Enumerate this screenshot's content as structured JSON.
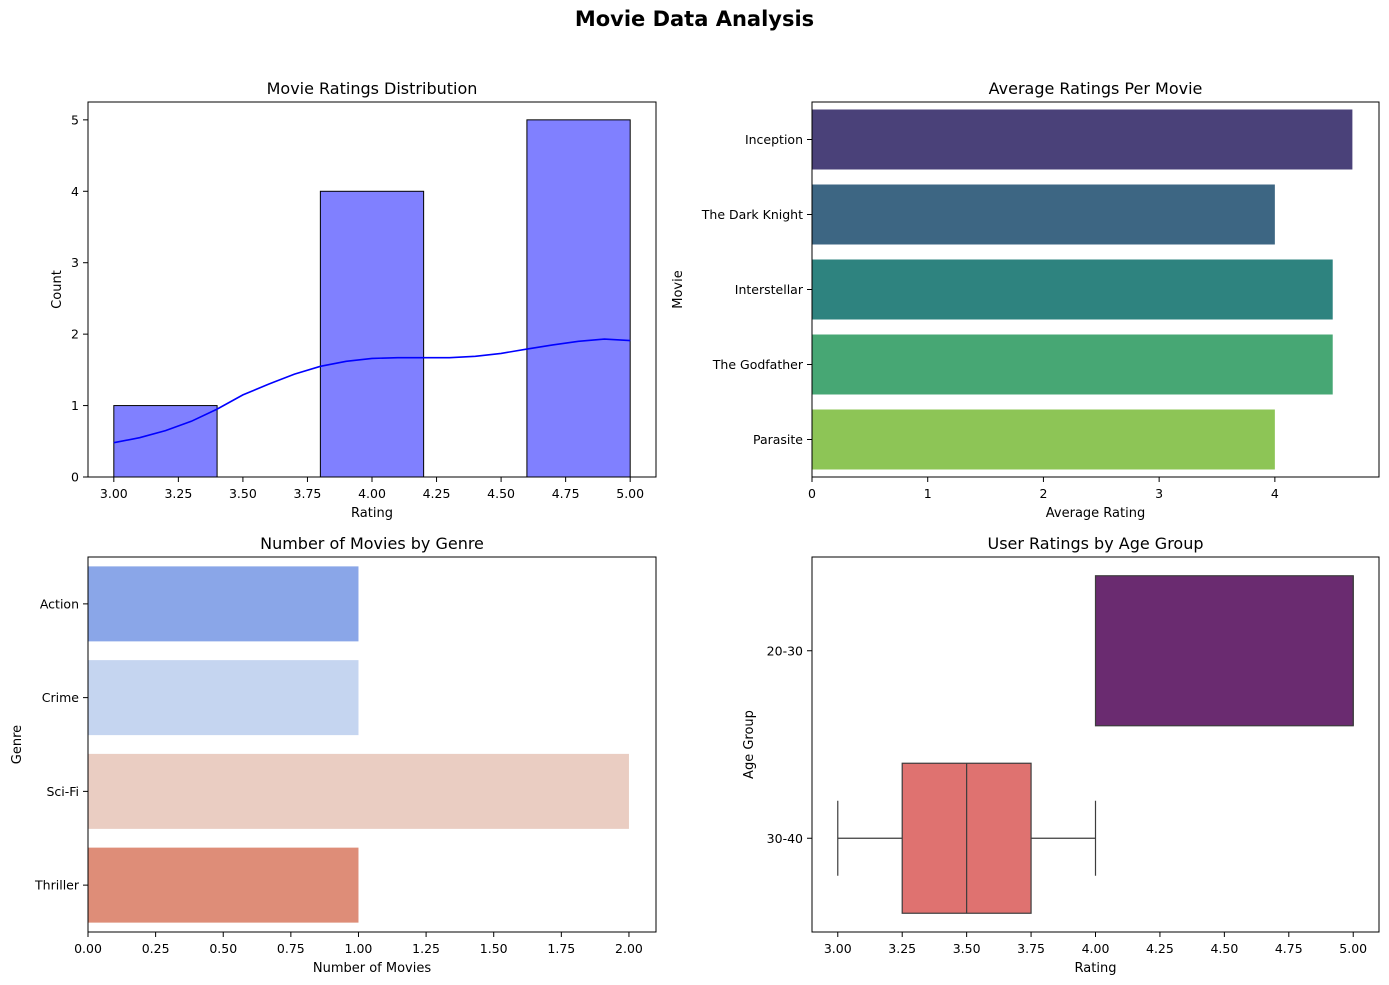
{
  "figure": {
    "title": "Movie Data Analysis"
  },
  "chart_data": [
    {
      "type": "bar",
      "subtype": "histogram_with_kde",
      "title": "Movie Ratings Distribution",
      "xlabel": "Rating",
      "ylabel": "Count",
      "xlim": [
        2.9,
        5.1
      ],
      "ylim": [
        0,
        5.25
      ],
      "xticks": [
        "3.00",
        "3.25",
        "3.50",
        "3.75",
        "4.00",
        "4.25",
        "4.50",
        "4.75",
        "5.00"
      ],
      "yticks": [
        "0",
        "1",
        "2",
        "3",
        "4",
        "5"
      ],
      "bins": [
        {
          "start": 3.0,
          "end": 3.4,
          "count": 1
        },
        {
          "start": 3.4,
          "end": 3.8,
          "count": 0
        },
        {
          "start": 3.8,
          "end": 4.2,
          "count": 4
        },
        {
          "start": 4.2,
          "end": 4.6,
          "count": 0
        },
        {
          "start": 4.6,
          "end": 5.0,
          "count": 5
        }
      ],
      "kde": {
        "x": [
          3.0,
          3.1,
          3.2,
          3.3,
          3.4,
          3.5,
          3.6,
          3.7,
          3.8,
          3.9,
          4.0,
          4.1,
          4.2,
          4.3,
          4.4,
          4.5,
          4.6,
          4.7,
          4.8,
          4.9,
          5.0
        ],
        "y": [
          0.48,
          0.55,
          0.65,
          0.78,
          0.95,
          1.15,
          1.3,
          1.44,
          1.55,
          1.62,
          1.66,
          1.67,
          1.67,
          1.67,
          1.69,
          1.73,
          1.79,
          1.85,
          1.9,
          1.93,
          1.91
        ]
      },
      "colors": {
        "bar": "#8080ff",
        "kde": "#0000ff"
      }
    },
    {
      "type": "bar",
      "orientation": "horizontal",
      "title": "Average Ratings Per Movie",
      "xlabel": "Average Rating",
      "ylabel": "Movie",
      "xlim": [
        0,
        4.9
      ],
      "xticks": [
        "0",
        "1",
        "2",
        "3",
        "4"
      ],
      "categories": [
        "Inception",
        "The Dark Knight",
        "Interstellar",
        "The Godfather",
        "Parasite"
      ],
      "values": [
        4.67,
        4.0,
        4.5,
        4.5,
        4.0
      ],
      "colors": [
        "#4a4179",
        "#3d6683",
        "#2e837f",
        "#47a774",
        "#8dc556"
      ]
    },
    {
      "type": "bar",
      "orientation": "horizontal",
      "title": "Number of Movies by Genre",
      "xlabel": "Number of Movies",
      "ylabel": "Genre",
      "xlim": [
        0,
        2.1
      ],
      "xticks": [
        "0.00",
        "0.25",
        "0.50",
        "0.75",
        "1.00",
        "1.25",
        "1.50",
        "1.75",
        "2.00"
      ],
      "categories": [
        "Action",
        "Crime",
        "Sci-Fi",
        "Thriller"
      ],
      "values": [
        1,
        1,
        2,
        1
      ],
      "colors": [
        "#8aa6e8",
        "#c5d5f0",
        "#eacdc2",
        "#de8d78"
      ]
    },
    {
      "type": "box",
      "title": "User Ratings by Age Group",
      "xlabel": "Rating",
      "ylabel": "Age Group",
      "xlim": [
        2.9,
        5.1
      ],
      "xticks": [
        "3.00",
        "3.25",
        "3.50",
        "3.75",
        "4.00",
        "4.25",
        "4.50",
        "4.75",
        "5.00"
      ],
      "categories": [
        "20-30",
        "30-40"
      ],
      "boxes": [
        {
          "q1": 4.0,
          "median": 5.0,
          "q3": 5.0,
          "whislo": 4.0,
          "whishi": 5.0,
          "color": "#6a2b70"
        },
        {
          "q1": 3.25,
          "median": 3.5,
          "q3": 3.75,
          "whislo": 3.0,
          "whishi": 4.0,
          "color": "#df7270"
        }
      ]
    }
  ]
}
